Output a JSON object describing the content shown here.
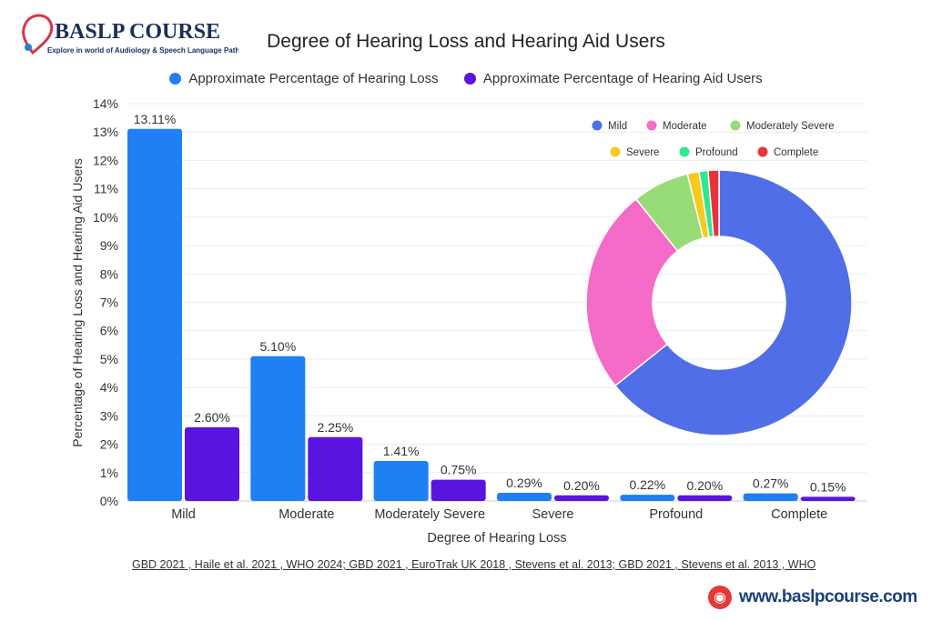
{
  "logo": {
    "name": "BASLP COURSE",
    "tagline": "Explore in world of Audiology & Speech Language Pathology"
  },
  "colors": {
    "loss": "#1f7ff5",
    "aid": "#5a14e0",
    "pie": [
      "#4f6ee8",
      "#f46bc8",
      "#98dc78",
      "#f5cc1e",
      "#2ee88f",
      "#e8333a"
    ]
  },
  "chart_data": [
    {
      "type": "bar",
      "title": "Degree of Hearing Loss and Hearing Aid Users",
      "xlabel": "Degree of Hearing Loss",
      "ylabel": "Percentage of Hearing Loss and Hearing Aid Users",
      "ylim": [
        0,
        14
      ],
      "yticks": [
        "0%",
        "1%",
        "2%",
        "3%",
        "4%",
        "5%",
        "6%",
        "7%",
        "8%",
        "9%",
        "10%",
        "11%",
        "12%",
        "13%",
        "14%"
      ],
      "grid": true,
      "legend": "top",
      "categories": [
        "Mild",
        "Moderate",
        "Moderately Severe",
        "Severe",
        "Profound",
        "Complete"
      ],
      "series": [
        {
          "name": "Approximate Percentage of Hearing Loss",
          "values": [
            13.11,
            5.1,
            1.41,
            0.29,
            0.22,
            0.27
          ],
          "labels": [
            "13.11%",
            "5.10%",
            "1.41%",
            "0.29%",
            "0.22%",
            "0.27%"
          ]
        },
        {
          "name": "Approximate Percentage of Hearing Aid Users",
          "values": [
            2.6,
            2.25,
            0.75,
            0.2,
            0.2,
            0.15
          ],
          "labels": [
            "2.60%",
            "2.25%",
            "0.75%",
            "0.20%",
            "0.20%",
            "0.15%"
          ]
        }
      ]
    },
    {
      "type": "pie",
      "donut": true,
      "legend": "top",
      "categories": [
        "Mild",
        "Moderate",
        "Moderately Severe",
        "Severe",
        "Profound",
        "Complete"
      ],
      "values": [
        13.11,
        5.1,
        1.41,
        0.29,
        0.22,
        0.27
      ]
    }
  ],
  "source": "GBD 2021 , Haile et al. 2021 , WHO 2024; GBD 2021 , EuroTrak UK 2018 , Stevens et al. 2013; GBD 2021 , Stevens et al. 2013 , WHO",
  "website": "www.baslpcourse.com"
}
